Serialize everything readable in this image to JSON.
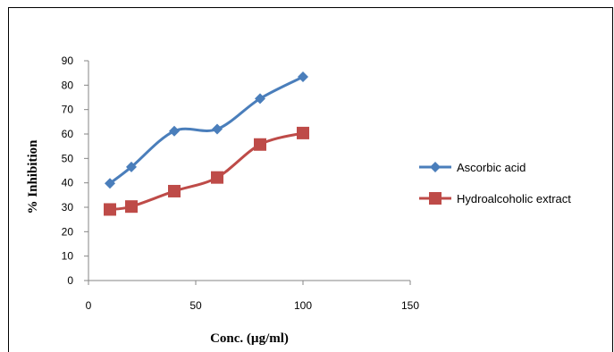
{
  "chart_data": {
    "type": "line",
    "xlabel": "Conc. (µg/ml)",
    "ylabel": "% Inhibition",
    "xlim": [
      0,
      150
    ],
    "ylim": [
      0,
      90
    ],
    "xticks": [
      0,
      50,
      100,
      150
    ],
    "yticks": [
      0,
      10,
      20,
      30,
      40,
      50,
      60,
      70,
      80,
      90
    ],
    "grid": false,
    "legend_position": "right",
    "series": [
      {
        "name": "Ascorbic acid",
        "color": "#4a7ebb",
        "marker": "diamond",
        "smooth": true,
        "x": [
          10,
          20,
          40,
          60,
          80,
          100
        ],
        "y": [
          39.8,
          46.5,
          61.2,
          62.0,
          74.5,
          83.4
        ]
      },
      {
        "name": "Hydroalcoholic extract",
        "color": "#be4b48",
        "marker": "square",
        "smooth": true,
        "x": [
          10,
          20,
          40,
          60,
          80,
          100
        ],
        "y": [
          29.1,
          30.3,
          36.6,
          42.2,
          55.7,
          60.4
        ]
      }
    ]
  }
}
